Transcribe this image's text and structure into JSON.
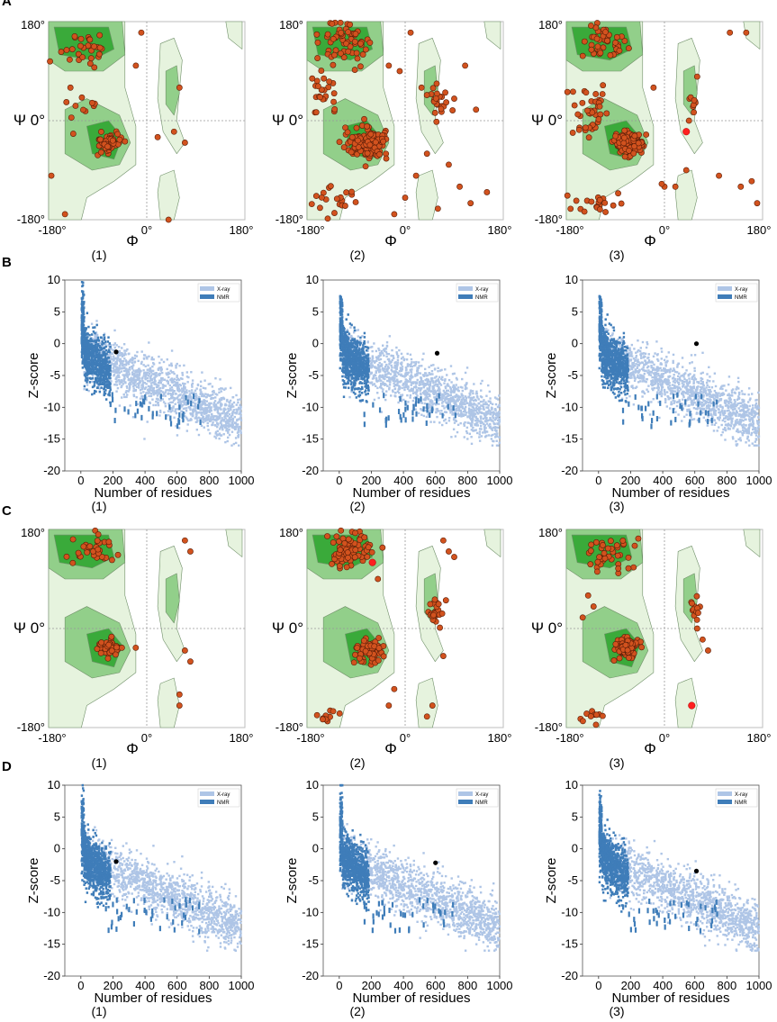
{
  "figure": {
    "panels": [
      {
        "letter": "A",
        "type": "ramachandran"
      },
      {
        "letter": "B",
        "type": "zscore"
      },
      {
        "letter": "C",
        "type": "ramachandran"
      },
      {
        "letter": "D",
        "type": "zscore"
      }
    ],
    "sublabels": [
      "(1)",
      "(2)",
      "(3)"
    ]
  },
  "colors": {
    "favored": "#3aaa3a",
    "allowed": "#92cf8a",
    "generous": "#e6f3de",
    "residue_fill": "#d2521e",
    "residue_edge": "#5a1e08",
    "outlier": "#ff2020",
    "xray": "#aec5e6",
    "nmr": "#3f7db9",
    "query": "#000000"
  },
  "chart_data": [
    {
      "type": "scatter",
      "panel": "A",
      "subplot": "(1)",
      "xlabel": "Φ",
      "ylabel": "Ψ",
      "xticks": [
        "-180°",
        "0°",
        "180°"
      ],
      "yticks": [
        "180°",
        "Ψ 0°",
        "-180°"
      ],
      "xlim": [
        -180,
        180
      ],
      "ylim": [
        -180,
        180
      ],
      "clusters": [
        [
          -70,
          -40,
          18,
          14,
          55
        ],
        [
          -110,
          130,
          35,
          30,
          30
        ],
        [
          -120,
          20,
          30,
          25,
          10
        ]
      ],
      "extra_points": [
        [
          -20,
          100
        ],
        [
          -140,
          60
        ],
        [
          60,
          60
        ],
        [
          50,
          -20
        ],
        [
          70,
          -40
        ],
        [
          20,
          -30
        ],
        [
          40,
          -180
        ],
        [
          -175,
          -100
        ],
        [
          -150,
          -170
        ],
        [
          -10,
          160
        ]
      ],
      "outliers": []
    },
    {
      "type": "scatter",
      "panel": "A",
      "subplot": "(2)",
      "xlabel": "Φ",
      "ylabel": "Ψ",
      "xticks": [
        "-180°",
        "0°",
        "180°"
      ],
      "yticks": [
        "180°",
        "Ψ 0°",
        "-180°"
      ],
      "xlim": [
        -180,
        180
      ],
      "ylim": [
        -180,
        180
      ],
      "clusters": [
        [
          -70,
          -40,
          28,
          22,
          140
        ],
        [
          -110,
          140,
          40,
          30,
          60
        ],
        [
          -150,
          60,
          25,
          40,
          25
        ],
        [
          60,
          30,
          20,
          30,
          25
        ],
        [
          -130,
          -150,
          35,
          20,
          20
        ]
      ],
      "extra_points": [
        [
          100,
          -120
        ],
        [
          120,
          -150
        ],
        [
          90,
          40
        ],
        [
          30,
          60
        ],
        [
          -10,
          90
        ],
        [
          20,
          -100
        ],
        [
          150,
          -130
        ],
        [
          10,
          160
        ],
        [
          110,
          100
        ],
        [
          -30,
          100
        ],
        [
          60,
          -160
        ],
        [
          130,
          20
        ],
        [
          80,
          -80
        ],
        [
          40,
          -60
        ],
        [
          -20,
          -170
        ],
        [
          0,
          -140
        ]
      ],
      "outliers": []
    },
    {
      "type": "scatter",
      "panel": "A",
      "subplot": "(3)",
      "xlabel": "Φ",
      "ylabel": "Ψ",
      "xticks": [
        "-180°",
        "0°",
        "180°"
      ],
      "yticks": [
        "180°",
        "Ψ 0°",
        "-180°"
      ],
      "xlim": [
        -180,
        180
      ],
      "ylim": [
        -180,
        180
      ],
      "clusters": [
        [
          -65,
          -40,
          20,
          16,
          130
        ],
        [
          -110,
          140,
          35,
          25,
          45
        ],
        [
          -140,
          20,
          30,
          50,
          40
        ],
        [
          55,
          30,
          15,
          20,
          8
        ],
        [
          -120,
          -150,
          40,
          20,
          20
        ]
      ],
      "extra_points": [
        [
          150,
          160
        ],
        [
          140,
          -120
        ],
        [
          170,
          -150
        ],
        [
          0,
          -120
        ],
        [
          20,
          -120
        ],
        [
          -5,
          -115
        ],
        [
          120,
          160
        ],
        [
          60,
          80
        ],
        [
          45,
          0
        ],
        [
          -20,
          60
        ],
        [
          160,
          -110
        ],
        [
          100,
          -100
        ],
        [
          40,
          -90
        ]
      ],
      "outliers": [
        [
          40,
          -20
        ]
      ]
    },
    {
      "type": "bar",
      "panel": "B",
      "subplot": "(1)",
      "xlabel": "Number of residues",
      "ylabel": "Z-score",
      "xticks": [
        "0",
        "200",
        "400",
        "600",
        "800",
        "1000"
      ],
      "yticks": [
        "10",
        "5",
        "0",
        "-5",
        "-10",
        "-15",
        "-20"
      ],
      "xlim": [
        -100,
        1000
      ],
      "ylim": [
        -20,
        10
      ],
      "series": [
        {
          "name": "X-ray"
        },
        {
          "name": "NMR"
        }
      ],
      "query_point": {
        "x": 220,
        "y": -1.3
      }
    },
    {
      "type": "bar",
      "panel": "B",
      "subplot": "(2)",
      "xlabel": "Number of residues",
      "ylabel": "Z-score",
      "xticks": [
        "0",
        "200",
        "400",
        "600",
        "800",
        "1000"
      ],
      "yticks": [
        "10",
        "5",
        "0",
        "-5",
        "-10",
        "-15",
        "-20"
      ],
      "xlim": [
        -100,
        1000
      ],
      "ylim": [
        -20,
        10
      ],
      "series": [
        {
          "name": "X-ray"
        },
        {
          "name": "NMR"
        }
      ],
      "query_point": {
        "x": 610,
        "y": -1.5
      }
    },
    {
      "type": "bar",
      "panel": "B",
      "subplot": "(3)",
      "xlabel": "Number of residues",
      "ylabel": "Z-score",
      "xticks": [
        "0",
        "200",
        "400",
        "600",
        "800",
        "1000"
      ],
      "yticks": [
        "10",
        "5",
        "0",
        "-5",
        "-10",
        "-15",
        "-20"
      ],
      "xlim": [
        -100,
        1000
      ],
      "ylim": [
        -20,
        10
      ],
      "series": [
        {
          "name": "X-ray"
        },
        {
          "name": "NMR"
        }
      ],
      "query_point": {
        "x": 610,
        "y": 0
      }
    },
    {
      "type": "scatter",
      "panel": "C",
      "subplot": "(1)",
      "xlabel": "Φ",
      "ylabel": "Ψ",
      "xticks": [
        "-180°",
        "0°",
        "180°"
      ],
      "yticks": [
        "180°",
        "Ψ 0°",
        "-180°"
      ],
      "xlim": [
        -180,
        180
      ],
      "ylim": [
        -180,
        180
      ],
      "clusters": [
        [
          -65,
          -35,
          18,
          14,
          45
        ],
        [
          -100,
          140,
          35,
          22,
          35
        ]
      ],
      "extra_points": [
        [
          70,
          -40
        ],
        [
          80,
          -60
        ],
        [
          60,
          -120
        ],
        [
          70,
          160
        ],
        [
          60,
          -140
        ],
        [
          80,
          140
        ]
      ],
      "outliers": []
    },
    {
      "type": "scatter",
      "panel": "C",
      "subplot": "(2)",
      "xlabel": "Φ",
      "ylabel": "Ψ",
      "xticks": [
        "-180°",
        "0°",
        "180°"
      ],
      "yticks": [
        "180°",
        "Ψ 0°",
        "-180°"
      ],
      "xlim": [
        -180,
        180
      ],
      "ylim": [
        -180,
        180
      ],
      "clusters": [
        [
          -65,
          -40,
          20,
          18,
          70
        ],
        [
          -100,
          140,
          35,
          25,
          90
        ],
        [
          55,
          30,
          12,
          25,
          25
        ],
        [
          -140,
          -160,
          30,
          15,
          10
        ]
      ],
      "extra_points": [
        [
          70,
          160
        ],
        [
          80,
          140
        ],
        [
          90,
          130
        ],
        [
          40,
          -160
        ],
        [
          50,
          -140
        ],
        [
          -20,
          -110
        ],
        [
          -30,
          -140
        ],
        [
          70,
          -50
        ],
        [
          -50,
          90
        ]
      ],
      "outliers": [
        [
          -60,
          120
        ]
      ]
    },
    {
      "type": "scatter",
      "panel": "C",
      "subplot": "(3)",
      "xlabel": "Φ",
      "ylabel": "Ψ",
      "xticks": [
        "-180°",
        "0°",
        "180°"
      ],
      "yticks": [
        "180°",
        "Ψ 0°",
        "-180°"
      ],
      "xlim": [
        -180,
        180
      ],
      "ylim": [
        -180,
        180
      ],
      "clusters": [
        [
          -70,
          -35,
          18,
          16,
          110
        ],
        [
          -100,
          135,
          35,
          25,
          40
        ],
        [
          55,
          30,
          12,
          20,
          12
        ],
        [
          -130,
          -160,
          30,
          15,
          10
        ]
      ],
      "extra_points": [
        [
          -140,
          60
        ],
        [
          -130,
          40
        ],
        [
          -150,
          20
        ],
        [
          60,
          0
        ],
        [
          70,
          -20
        ],
        [
          80,
          -40
        ]
      ],
      "outliers": [
        [
          50,
          -140
        ]
      ]
    },
    {
      "type": "bar",
      "panel": "D",
      "subplot": "(1)",
      "xlabel": "Number of residues",
      "ylabel": "Z-score",
      "xticks": [
        "0",
        "200",
        "400",
        "600",
        "800",
        "1000"
      ],
      "yticks": [
        "10",
        "5",
        "0",
        "-5",
        "-10",
        "-15",
        "-20"
      ],
      "xlim": [
        -100,
        1000
      ],
      "ylim": [
        -20,
        10
      ],
      "series": [
        {
          "name": "X-ray"
        },
        {
          "name": "NMR"
        }
      ],
      "query_point": {
        "x": 220,
        "y": -2.0
      }
    },
    {
      "type": "bar",
      "panel": "D",
      "subplot": "(2)",
      "xlabel": "Number of residues",
      "ylabel": "Z-score",
      "xticks": [
        "0",
        "200",
        "400",
        "600",
        "800",
        "1000"
      ],
      "yticks": [
        "10",
        "5",
        "0",
        "-5",
        "-10",
        "-15",
        "-20"
      ],
      "xlim": [
        -100,
        1000
      ],
      "ylim": [
        -20,
        10
      ],
      "series": [
        {
          "name": "X-ray"
        },
        {
          "name": "NMR"
        }
      ],
      "query_point": {
        "x": 600,
        "y": -2.2
      }
    },
    {
      "type": "bar",
      "panel": "D",
      "subplot": "(3)",
      "xlabel": "Number of residues",
      "ylabel": "Z-score",
      "xticks": [
        "0",
        "200",
        "400",
        "600",
        "800",
        "1000"
      ],
      "yticks": [
        "10",
        "5",
        "0",
        "-5",
        "-10",
        "-15",
        "-20"
      ],
      "xlim": [
        -100,
        1000
      ],
      "ylim": [
        -20,
        10
      ],
      "series": [
        {
          "name": "X-ray"
        },
        {
          "name": "NMR"
        }
      ],
      "query_point": {
        "x": 610,
        "y": -3.5
      }
    }
  ]
}
